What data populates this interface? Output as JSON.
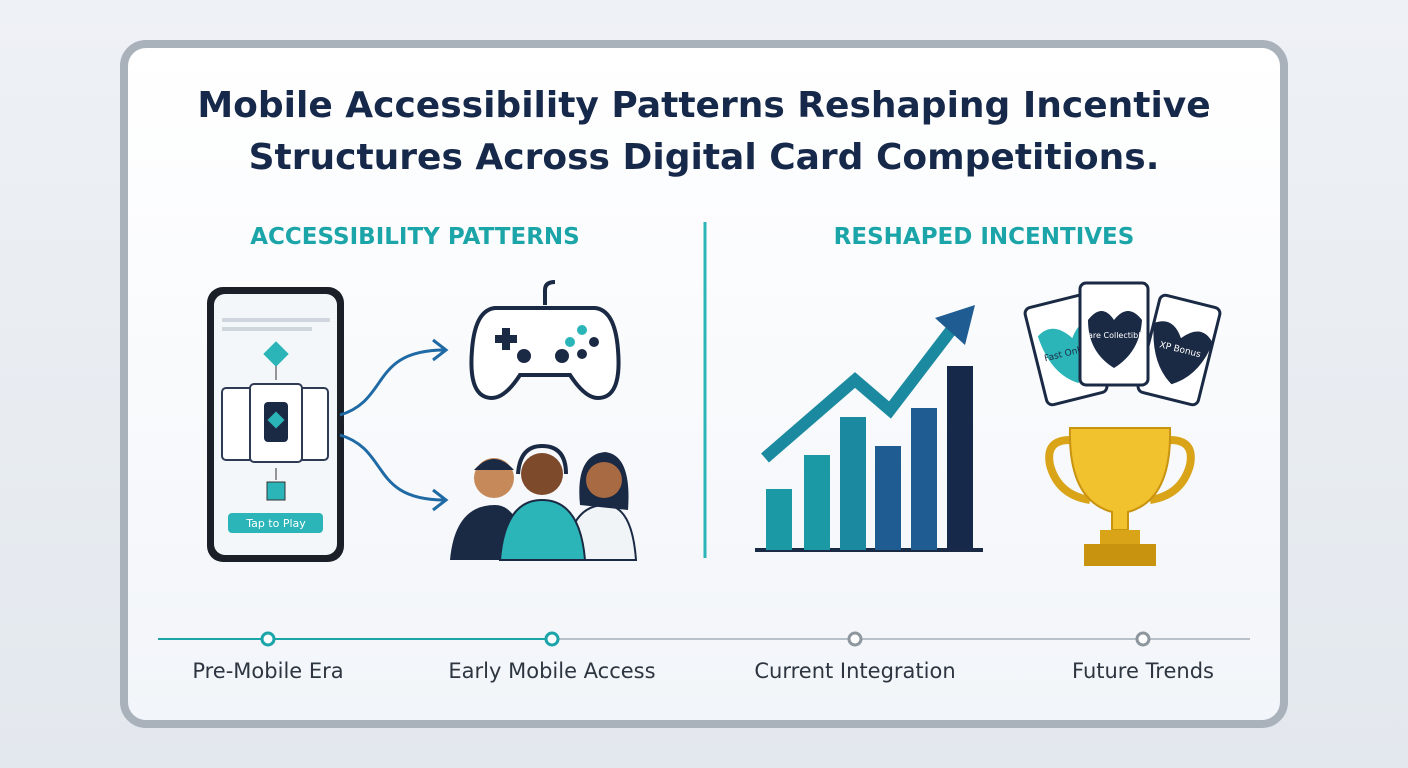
{
  "title": "Mobile Accessibility Patterns Reshaping Incentive Structures Across Digital Card Competitions.",
  "sections": [
    {
      "heading": "ACCESSIBILITY PATTERNS"
    },
    {
      "heading": "RESHAPED INCENTIVES"
    }
  ],
  "phone": {
    "button": "Tap to Play"
  },
  "cards": [
    "Fast Online",
    "Rare Collectible",
    "XP Bonus"
  ],
  "timeline": [
    "Pre-Mobile Era",
    "Early Mobile Access",
    "Current Integration",
    "Future Trends"
  ]
}
